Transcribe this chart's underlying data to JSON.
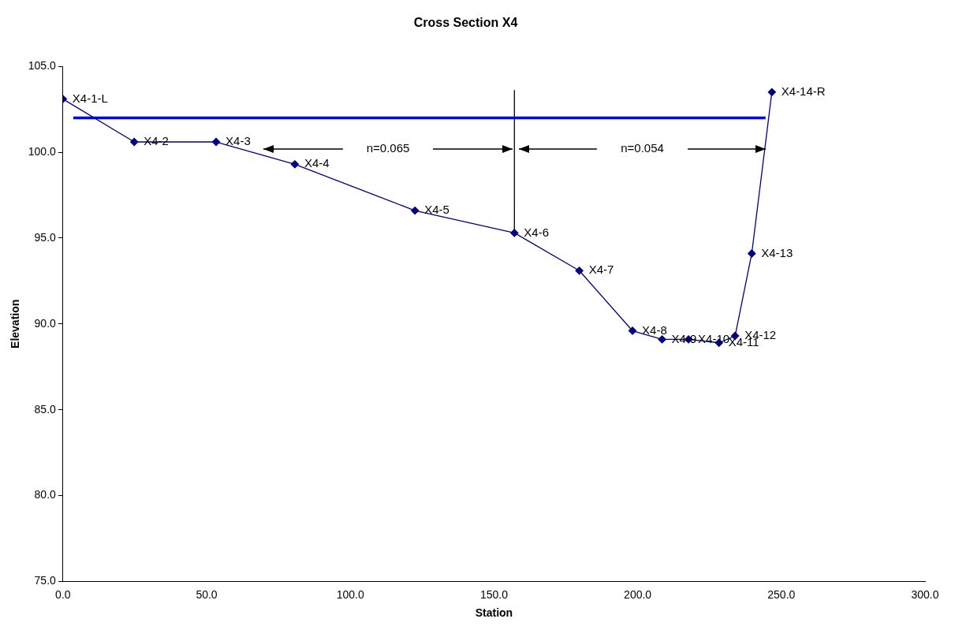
{
  "chart_data": {
    "type": "line",
    "title": "Cross Section X4",
    "xlabel": "Station",
    "ylabel": "Elevation",
    "xlim": [
      0,
      300
    ],
    "xticks": [
      {
        "value": 0,
        "label": "0.0"
      },
      {
        "value": 50,
        "label": "50.0"
      },
      {
        "value": 100,
        "label": "100.0"
      },
      {
        "value": 150,
        "label": "150.0"
      },
      {
        "value": 200,
        "label": "200.0"
      },
      {
        "value": 250,
        "label": "250.0"
      },
      {
        "value": 300,
        "label": "300.0"
      }
    ],
    "ylim": [
      75,
      105
    ],
    "yticks": [
      {
        "value": 75,
        "label": "75.0"
      },
      {
        "value": 80,
        "label": "80.0"
      },
      {
        "value": 85,
        "label": "85.0"
      },
      {
        "value": 90,
        "label": "90.0"
      },
      {
        "value": 95,
        "label": "95.0"
      },
      {
        "value": 100,
        "label": "100.0"
      },
      {
        "value": 105,
        "label": "105.0"
      }
    ],
    "grid": false,
    "legend": false,
    "series": [
      {
        "color": "#000080",
        "marker": "diamond",
        "x": [
          0,
          24.8,
          53.3,
          80.7,
          122.5,
          157.1,
          179.7,
          198.2,
          208.5,
          217.7,
          228.3,
          233.9,
          239.7,
          246.7
        ],
        "values": [
          103.1,
          100.6,
          100.6,
          99.3,
          96.6,
          95.3,
          93.1,
          89.6,
          89.1,
          89.1,
          88.9,
          89.3,
          94.1,
          103.5
        ]
      },
      {
        "color": "#0000ff",
        "marker": "none",
        "x": [
          3.6,
          244.5
        ],
        "values": [
          102.0,
          102.0
        ]
      },
      {
        "color": "#000000",
        "marker": "none",
        "x": [
          157.1,
          157.1
        ],
        "values": [
          103.6,
          95.3
        ]
      }
    ],
    "annotations": [
      {
        "text": "X4-1-L",
        "x": 0,
        "y": 103.1
      },
      {
        "text": "X4-2",
        "x": 24.8,
        "y": 100.6
      },
      {
        "text": "X4-3",
        "x": 53.3,
        "y": 100.6
      },
      {
        "text": "X4-4",
        "x": 80.7,
        "y": 99.3
      },
      {
        "text": "X4-5",
        "x": 122.5,
        "y": 96.6
      },
      {
        "text": "X4-6",
        "x": 157.1,
        "y": 95.3
      },
      {
        "text": "X4-7",
        "x": 179.7,
        "y": 93.1
      },
      {
        "text": "X4-8",
        "x": 198.2,
        "y": 89.6
      },
      {
        "text": "X4-9",
        "x": 208.5,
        "y": 89.1
      },
      {
        "text": "X4-10",
        "x": 217.7,
        "y": 89.1
      },
      {
        "text": "X4-11",
        "x": 228.3,
        "y": 88.9
      },
      {
        "text": "X4-12",
        "x": 233.9,
        "y": 89.3
      },
      {
        "text": "X4-13",
        "x": 239.7,
        "y": 94.1
      },
      {
        "text": "X4-14-R",
        "x": 246.7,
        "y": 103.5
      },
      "n=0.065",
      "n=0.054"
    ]
  }
}
